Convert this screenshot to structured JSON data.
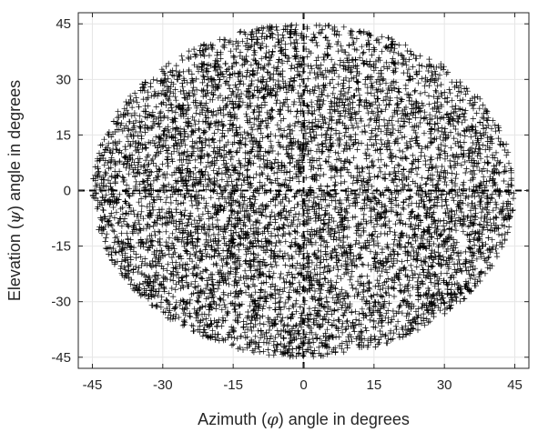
{
  "chart_data": {
    "type": "scatter",
    "title": "",
    "xlabel": {
      "pre": "Azimuth (",
      "sym": "φ",
      "post": ") angle in degrees"
    },
    "ylabel": {
      "pre": "Elevation (",
      "sym": "ψ",
      "post": ") angle in degrees"
    },
    "xlim": [
      -48,
      48
    ],
    "ylim": [
      -48,
      48
    ],
    "xticks": [
      -45,
      -30,
      -15,
      0,
      15,
      30,
      45
    ],
    "yticks": [
      -45,
      -30,
      -15,
      0,
      15,
      30,
      45
    ],
    "grid": true,
    "marker": "+",
    "marker_color": "#000000",
    "reference_lines": {
      "x": 0,
      "y": 0,
      "style": "dashed",
      "color": "#000000"
    },
    "distribution": {
      "shape": "ellipse",
      "center": [
        0,
        0
      ],
      "semi_axis_x": 45,
      "semi_axis_y": 45,
      "approx_point_count": 7000
    }
  }
}
